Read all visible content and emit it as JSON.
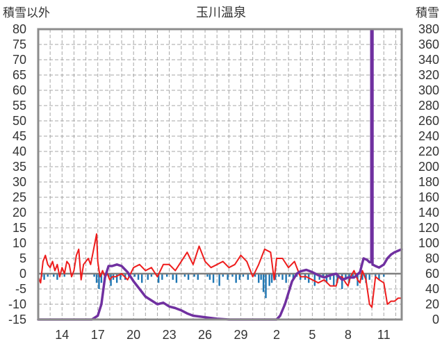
{
  "chart_data": {
    "type": "line",
    "title": "玉川温泉",
    "ylabel_left": "積雪以外",
    "ylabel_right": "積雪",
    "ylim_left": [
      -15,
      80
    ],
    "ylim_right": [
      0,
      380
    ],
    "yticks_left": [
      "80",
      "75",
      "70",
      "65",
      "60",
      "55",
      "50",
      "45",
      "40",
      "35",
      "30",
      "25",
      "20",
      "15",
      "10",
      "5",
      "0",
      "-5",
      "-10",
      "-15"
    ],
    "yticks_right": [
      "380",
      "360",
      "340",
      "320",
      "300",
      "280",
      "260",
      "240",
      "220",
      "200",
      "180",
      "160",
      "140",
      "120",
      "100",
      "80",
      "60",
      "40",
      "20",
      "0"
    ],
    "xticks": [
      "14",
      "17",
      "20",
      "23",
      "26",
      "29",
      "2",
      "5",
      "8",
      "11"
    ],
    "xtick_positions": [
      2,
      5,
      8,
      11,
      14,
      17,
      20,
      23,
      26,
      29
    ],
    "xlim": [
      0,
      30.5
    ],
    "grid": true,
    "colors": {
      "temperature": "#ee1c1c",
      "snow_depth": "#7030a0",
      "precipitation": "#1f77b4",
      "frame": "#8c8c8c",
      "grid": "#a6a6a6",
      "zero_line": "#7f7f7f"
    },
    "series": [
      {
        "axis": "left",
        "color": "#ee1c1c",
        "x": [
          0,
          0.2,
          0.4,
          0.6,
          0.8,
          1,
          1.2,
          1.4,
          1.6,
          1.8,
          2,
          2.2,
          2.4,
          2.6,
          2.8,
          3,
          3.2,
          3.4,
          3.6,
          3.8,
          4,
          4.2,
          4.4,
          4.6,
          4.8,
          4.9,
          5,
          5.1,
          5.2,
          5.4,
          5.6,
          5.8,
          6,
          6.2,
          6.5,
          7,
          7.5,
          8,
          8.5,
          9,
          9.5,
          10,
          10.5,
          11,
          11.5,
          12,
          12.5,
          13,
          13.5,
          14,
          14.5,
          15,
          15.5,
          16,
          16.5,
          17,
          17.5,
          18,
          18.5,
          19,
          19.5,
          19.8,
          20,
          20.5,
          21,
          21.5,
          22,
          22.5,
          23,
          23.5,
          24,
          24.5,
          25,
          25.2,
          25.5,
          25.8,
          26,
          26.2,
          26.5,
          26.8,
          27,
          27.2,
          27.5,
          27.8,
          28,
          28.3,
          28.6,
          29,
          29.3,
          29.6,
          29.9,
          30.2,
          30.5
        ],
        "y": [
          -1,
          -3,
          4,
          6,
          3,
          2,
          4,
          1,
          3,
          -1,
          2,
          0,
          4,
          3,
          -1,
          1,
          6,
          8,
          -2,
          3,
          4,
          5,
          3,
          7,
          11,
          13,
          4,
          1,
          -1,
          1,
          -1,
          0,
          -2,
          -1,
          -1,
          0,
          -2,
          2,
          3,
          1,
          2,
          -1,
          3,
          3,
          1,
          4,
          7,
          3,
          9,
          4,
          2,
          3,
          4,
          2,
          3,
          6,
          4,
          -1,
          3,
          8,
          7,
          -2,
          5,
          5,
          2,
          4,
          -1,
          -1,
          -2,
          -3,
          -2,
          -4,
          -4,
          -1,
          -1,
          -3,
          -4,
          -1,
          1,
          -2,
          -3,
          1,
          -2,
          -10,
          -11,
          -1,
          -2,
          -3,
          -10,
          -9,
          -9,
          -8,
          -8
        ]
      },
      {
        "axis": "right",
        "color": "#7030a0",
        "x": [
          0,
          3,
          4.5,
          5,
          5.3,
          5.6,
          5.9,
          6.2,
          6.6,
          7,
          7.5,
          8,
          8.5,
          9,
          9.5,
          10,
          10.5,
          11,
          11.5,
          12,
          12.5,
          13,
          14,
          15,
          16,
          17,
          18,
          19,
          20,
          20.3,
          20.7,
          21,
          21.3,
          21.7,
          22,
          22.5,
          23,
          23.5,
          24,
          24.5,
          25,
          25.5,
          26,
          26.5,
          27,
          27.3,
          27.6,
          27.8,
          27.95,
          27.95,
          28.05,
          28.05,
          28.3,
          28.6,
          29,
          29.3,
          29.6,
          29.9,
          30.2,
          30.5
        ],
        "y": [
          0,
          0,
          0,
          5,
          20,
          55,
          70,
          70,
          72,
          70,
          62,
          50,
          40,
          30,
          25,
          20,
          22,
          17,
          15,
          12,
          8,
          5,
          3,
          1,
          0,
          0,
          0,
          0,
          0,
          5,
          20,
          35,
          50,
          60,
          63,
          65,
          62,
          58,
          55,
          58,
          60,
          52,
          55,
          55,
          62,
          80,
          78,
          75,
          75,
          378,
          378,
          72,
          70,
          68,
          72,
          80,
          85,
          88,
          90,
          92
        ]
      }
    ],
    "precipitation": {
      "axis": "left",
      "color": "#1f77b4",
      "x": [
        0.3,
        0.5,
        0.8,
        1.3,
        1.6,
        2.2,
        4.7,
        4.9,
        5.1,
        5.3,
        5.6,
        5.9,
        6.1,
        6.3,
        6.6,
        6.9,
        7.3,
        7.6,
        8.1,
        8.4,
        8.7,
        9.2,
        9.5,
        10.1,
        10.4,
        10.8,
        11.3,
        11.6,
        12.3,
        12.6,
        13.1,
        13.4,
        14.2,
        14.4,
        14.7,
        15.2,
        15.5,
        15.9,
        16.3,
        16.6,
        16.9,
        17.2,
        17.6,
        18.2,
        18.5,
        18.7,
        18.9,
        19.1,
        19.4,
        19.6,
        19.9,
        20.2,
        20.5,
        20.8,
        21.1,
        21.4,
        21.7,
        22,
        22.4,
        22.7,
        23.2,
        23.6,
        23.9,
        24.2,
        24.5,
        24.8,
        25.1,
        25.5,
        25.8,
        26.1,
        26.4,
        26.8,
        27.2,
        27.5,
        27.8,
        28.3,
        28.6,
        29
      ],
      "y": [
        -1,
        -2,
        -1,
        -1,
        -2,
        -1,
        -1,
        -3,
        -5,
        -3,
        -2,
        -1,
        -4,
        -2,
        -3,
        -2,
        -2,
        -1,
        -1,
        -2,
        -3,
        -2,
        -1,
        -3,
        -2,
        -1,
        -2,
        -3,
        -1,
        -2,
        -1,
        -2,
        -1,
        -2,
        -3,
        -4,
        -1,
        -2,
        -1,
        -3,
        -2,
        -1,
        -2,
        -1,
        -3,
        -2,
        -6,
        -8,
        -4,
        -3,
        -2,
        -1,
        -2,
        -3,
        -1,
        -2,
        -1,
        -2,
        -2,
        -3,
        -4,
        -2,
        -1,
        -3,
        -2,
        -4,
        -3,
        -5,
        -2,
        -3,
        -1,
        -4,
        -2,
        -3,
        -2,
        -1,
        -2,
        -1
      ]
    }
  }
}
